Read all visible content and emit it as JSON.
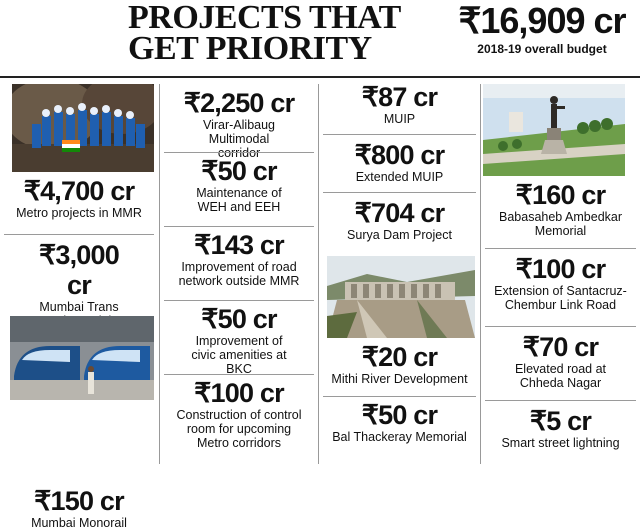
{
  "header": {
    "title_line1": "PROJECTS THAT",
    "title_line2": "GET PRIORITY",
    "budget_amount": "₹16,909 cr",
    "budget_label": "2018-19 overall budget"
  },
  "col1": [
    {
      "amount": "₹4,700 cr",
      "label": "Metro projects in MMR"
    },
    {
      "amount": "₹3,000 cr",
      "label": "Mumbai Trans Harbour Link"
    },
    {
      "amount": "₹150 cr",
      "label": "Mumbai Monorail"
    }
  ],
  "col2": [
    {
      "amount": "₹2,250 cr",
      "label": "Virar-Alibaug Multimodal corridor"
    },
    {
      "amount": "₹50 cr",
      "label": "Maintenance of WEH and EEH"
    },
    {
      "amount": "₹143 cr",
      "label": "Improvement of road network outside MMR"
    },
    {
      "amount": "₹50 cr",
      "label": "Improvement of civic amenities at BKC"
    },
    {
      "amount": "₹100 cr",
      "label": "Construction of control room for upcoming Metro corridors"
    }
  ],
  "col3": [
    {
      "amount": "₹87 cr",
      "label": "MUIP"
    },
    {
      "amount": "₹800 cr",
      "label": "Extended MUIP"
    },
    {
      "amount": "₹704 cr",
      "label": "Surya Dam Project"
    },
    {
      "amount": "₹20 cr",
      "label": "Mithi River Development"
    },
    {
      "amount": "₹50 cr",
      "label": "Bal Thackeray Memorial"
    }
  ],
  "col4": [
    {
      "amount": "₹160 cr",
      "label": "Babasaheb Ambedkar Memorial"
    },
    {
      "amount": "₹100 cr",
      "label": "Extension of Santacruz-Chembur Link Road"
    },
    {
      "amount": "₹70 cr",
      "label": "Elevated road at Chheda Nagar"
    },
    {
      "amount": "₹5 cr",
      "label": "Smart street lightning"
    }
  ]
}
